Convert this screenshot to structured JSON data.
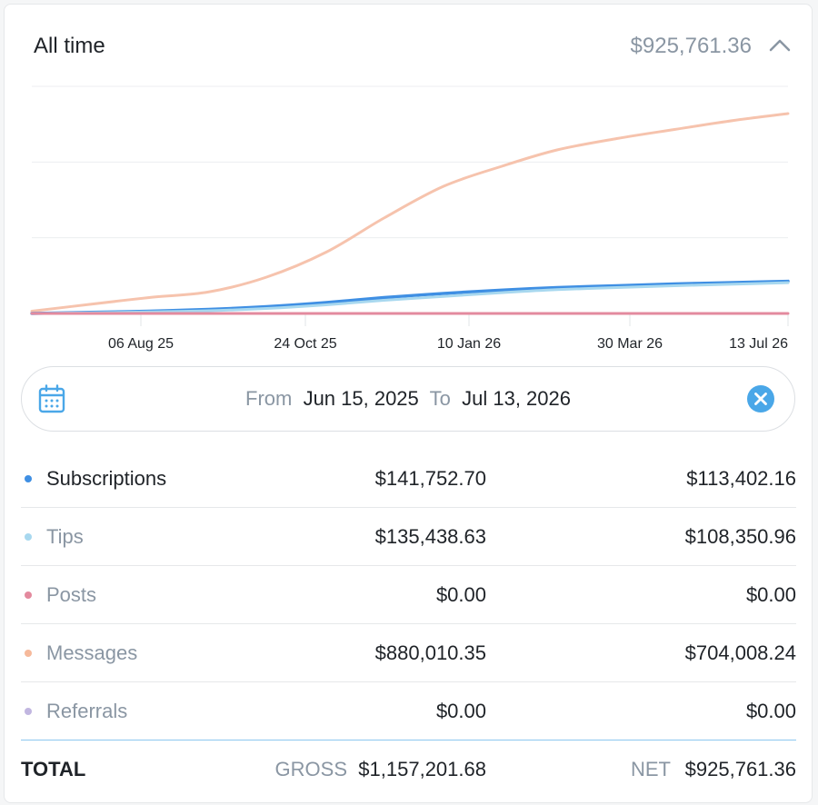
{
  "header": {
    "title": "All time",
    "total": "$925,761.36",
    "collapse_icon": "chevron-up-icon"
  },
  "date_range": {
    "from_label": "From",
    "from_value": "Jun 15, 2025",
    "to_label": "To",
    "to_value": "Jul 13, 2026",
    "calendar_icon": "calendar-icon",
    "clear_icon": "close-icon"
  },
  "rows": [
    {
      "name": "Subscriptions",
      "gross": "$141,752.70",
      "net": "$113,402.16",
      "color": "#3f8fe3",
      "active": true
    },
    {
      "name": "Tips",
      "gross": "$135,438.63",
      "net": "$108,350.96",
      "color": "#a8d8ef",
      "active": false
    },
    {
      "name": "Posts",
      "gross": "$0.00",
      "net": "$0.00",
      "color": "#e38a9e",
      "active": false
    },
    {
      "name": "Messages",
      "gross": "$880,010.35",
      "net": "$704,008.24",
      "color": "#f6b99b",
      "active": false
    },
    {
      "name": "Referrals",
      "gross": "$0.00",
      "net": "$0.00",
      "color": "#c1b6e0",
      "active": false
    }
  ],
  "totals": {
    "label": "TOTAL",
    "gross_label": "GROSS",
    "gross_value": "$1,157,201.68",
    "net_label": "NET",
    "net_value": "$925,761.36"
  },
  "chart_data": {
    "type": "line",
    "x_ticks": [
      "06 Aug 25",
      "24 Oct 25",
      "10 Jan 26",
      "30 Mar 26",
      "13 Jul 26"
    ],
    "x": [
      "2025-06-15",
      "2025-07-15",
      "2025-08-15",
      "2025-09-15",
      "2025-10-15",
      "2025-11-15",
      "2025-12-15",
      "2026-01-15",
      "2026-02-15",
      "2026-03-15",
      "2026-04-15",
      "2026-05-15",
      "2026-06-15",
      "2026-07-13"
    ],
    "series": [
      {
        "name": "Messages",
        "color": "#f6c3ad",
        "values": [
          10000,
          40000,
          70000,
          95000,
          160000,
          270000,
          420000,
          560000,
          650000,
          720000,
          770000,
          810000,
          850000,
          880000
        ]
      },
      {
        "name": "Subscriptions",
        "color": "#3f8fe3",
        "values": [
          0,
          5000,
          10000,
          18000,
          30000,
          48000,
          70000,
          88000,
          103000,
          114000,
          122000,
          130000,
          136000,
          141750
        ]
      },
      {
        "name": "Tips",
        "color": "#a8d8ef",
        "values": [
          0,
          3000,
          7000,
          12000,
          22000,
          38000,
          58000,
          75000,
          92000,
          105000,
          114000,
          122000,
          129000,
          135440
        ]
      },
      {
        "name": "Posts",
        "color": "#e38a9e",
        "values": [
          0,
          0,
          0,
          0,
          0,
          0,
          0,
          0,
          0,
          0,
          0,
          0,
          0,
          0
        ]
      }
    ],
    "ylim": [
      0,
      1000000
    ],
    "grid": true
  }
}
